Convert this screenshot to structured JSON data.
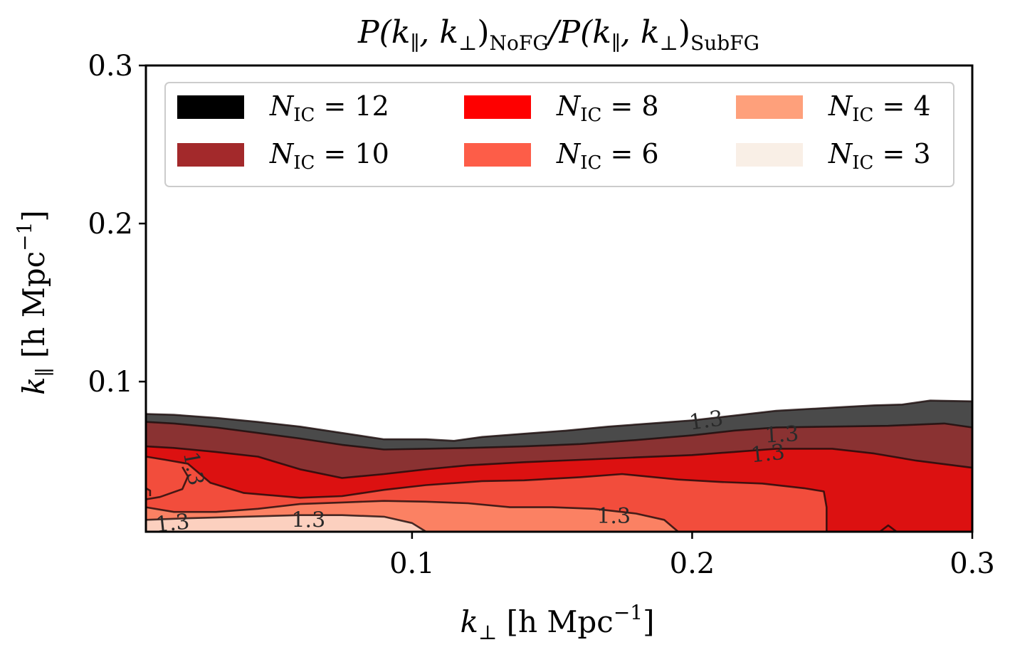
{
  "chart_data": {
    "type": "contour",
    "title": "P(k∥, k⊥)NoFG / P(k∥, k⊥)SubFG",
    "title_parts": {
      "a": "P(k",
      "a_sub": "∥",
      "b": ", k",
      "b_sub": "⊥",
      "c": ")",
      "c_sub": "NoFG",
      "d": "/P(k",
      "d_sub": "∥",
      "e": ", k",
      "e_sub": "⊥",
      "f": ")",
      "f_sub": "SubFG"
    },
    "xlabel": "k⊥ [h Mpc−1]",
    "xlabel_parts": {
      "sym": "k",
      "sub": "⊥",
      "unit": " [h Mpc",
      "exp": "−1",
      "close": "]"
    },
    "ylabel": "k∥ [h Mpc−1]",
    "ylabel_parts": {
      "sym": "k",
      "sub": "∥",
      "unit": " [h Mpc",
      "exp": "−1",
      "close": "]"
    },
    "xlim": [
      0.005,
      0.3
    ],
    "ylim": [
      0.005,
      0.3
    ],
    "x_ticks": [
      0.1,
      0.2,
      0.3
    ],
    "x_tick_labels": [
      "0.1",
      "0.2",
      "0.3"
    ],
    "y_ticks": [
      0.1,
      0.2,
      0.3
    ],
    "y_tick_labels": [
      "0.1",
      "0.2",
      "0.3"
    ],
    "contour_level": "1.3",
    "legend_position": "top",
    "series": [
      {
        "name": "N_IC = 12",
        "legend_sym": "N",
        "legend_sub": "IC",
        "legend_val": " = 12",
        "legend_color": "#000000",
        "fill_color": "#4a4a4a",
        "upper": [
          [
            0.005,
            0.0795
          ],
          [
            0.015,
            0.079
          ],
          [
            0.03,
            0.077
          ],
          [
            0.045,
            0.0745
          ],
          [
            0.06,
            0.0715
          ],
          [
            0.075,
            0.0675
          ],
          [
            0.09,
            0.0635
          ],
          [
            0.105,
            0.0635
          ],
          [
            0.115,
            0.0625
          ],
          [
            0.125,
            0.065
          ],
          [
            0.14,
            0.067
          ],
          [
            0.155,
            0.069
          ],
          [
            0.17,
            0.0715
          ],
          [
            0.185,
            0.0735
          ],
          [
            0.2,
            0.0755
          ],
          [
            0.215,
            0.0785
          ],
          [
            0.23,
            0.0815
          ],
          [
            0.245,
            0.083
          ],
          [
            0.255,
            0.084
          ],
          [
            0.265,
            0.085
          ],
          [
            0.275,
            0.0855
          ],
          [
            0.285,
            0.088
          ],
          [
            0.3,
            0.0875
          ]
        ]
      },
      {
        "name": "N_IC = 10",
        "legend_sym": "N",
        "legend_sub": "IC",
        "legend_val": " = 10",
        "legend_color": "#a3292b",
        "fill_color": "#8a3232",
        "upper": [
          [
            0.005,
            0.0745
          ],
          [
            0.015,
            0.0735
          ],
          [
            0.03,
            0.071
          ],
          [
            0.045,
            0.0675
          ],
          [
            0.06,
            0.064
          ],
          [
            0.075,
            0.06
          ],
          [
            0.09,
            0.057
          ],
          [
            0.105,
            0.0575
          ],
          [
            0.12,
            0.058
          ],
          [
            0.14,
            0.059
          ],
          [
            0.16,
            0.0605
          ],
          [
            0.18,
            0.063
          ],
          [
            0.2,
            0.066
          ],
          [
            0.215,
            0.069
          ],
          [
            0.23,
            0.071
          ],
          [
            0.25,
            0.0715
          ],
          [
            0.27,
            0.072
          ],
          [
            0.29,
            0.0735
          ],
          [
            0.3,
            0.071
          ]
        ]
      },
      {
        "name": "N_IC = 8",
        "legend_sym": "N",
        "legend_sub": "IC",
        "legend_val": " = 8",
        "legend_color": "#fe0000",
        "fill_color": "#dc1111",
        "upper": [
          [
            0.005,
            0.059
          ],
          [
            0.015,
            0.058
          ],
          [
            0.03,
            0.0555
          ],
          [
            0.045,
            0.0525
          ],
          [
            0.06,
            0.0445
          ],
          [
            0.075,
            0.039
          ],
          [
            0.09,
            0.0415
          ],
          [
            0.105,
            0.0445
          ],
          [
            0.12,
            0.047
          ],
          [
            0.14,
            0.049
          ],
          [
            0.16,
            0.0505
          ],
          [
            0.18,
            0.052
          ],
          [
            0.2,
            0.0535
          ],
          [
            0.215,
            0.0555
          ],
          [
            0.23,
            0.0575
          ],
          [
            0.25,
            0.0575
          ],
          [
            0.265,
            0.0545
          ],
          [
            0.28,
            0.05
          ],
          [
            0.3,
            0.0455
          ]
        ]
      },
      {
        "name": "N_IC = 6",
        "legend_sym": "N",
        "legend_sub": "IC",
        "legend_val": " = 6",
        "legend_color": "#fd5d48",
        "fill_color": "#f24d3c",
        "upper": [
          [
            0.005,
            0.0525
          ],
          [
            0.012,
            0.0505
          ],
          [
            0.02,
            0.048
          ],
          [
            0.028,
            0.036
          ],
          [
            0.04,
            0.0295
          ],
          [
            0.06,
            0.0265
          ],
          [
            0.075,
            0.0275
          ],
          [
            0.09,
            0.0315
          ],
          [
            0.105,
            0.0345
          ],
          [
            0.125,
            0.037
          ],
          [
            0.14,
            0.0375
          ],
          [
            0.16,
            0.0395
          ],
          [
            0.175,
            0.0415
          ],
          [
            0.195,
            0.038
          ],
          [
            0.21,
            0.0365
          ],
          [
            0.225,
            0.0355
          ],
          [
            0.24,
            0.0325
          ],
          [
            0.247,
            0.0305
          ],
          [
            0.248,
            0.0205
          ],
          [
            0.248,
            0.005
          ]
        ]
      },
      {
        "name": "N_IC = 4",
        "legend_sym": "N",
        "legend_sub": "IC",
        "legend_val": " = 4",
        "legend_color": "#fea07b",
        "fill_color": "#fb8163",
        "upper": [
          [
            0.005,
            0.0205
          ],
          [
            0.015,
            0.0175
          ],
          [
            0.03,
            0.0175
          ],
          [
            0.045,
            0.0195
          ],
          [
            0.06,
            0.0225
          ],
          [
            0.075,
            0.0235
          ],
          [
            0.09,
            0.0245
          ],
          [
            0.105,
            0.024
          ],
          [
            0.12,
            0.023
          ],
          [
            0.135,
            0.0205
          ],
          [
            0.15,
            0.0205
          ],
          [
            0.165,
            0.0195
          ],
          [
            0.18,
            0.0165
          ],
          [
            0.19,
            0.0125
          ],
          [
            0.195,
            0.005
          ]
        ]
      },
      {
        "name": "N_IC = 3",
        "legend_sym": "N",
        "legend_sub": "IC",
        "legend_val": " = 3",
        "legend_color": "#f9efe6",
        "fill_color": "#fcd0bf",
        "upper": [
          [
            0.005,
            0.0125
          ],
          [
            0.02,
            0.0135
          ],
          [
            0.04,
            0.0145
          ],
          [
            0.06,
            0.0155
          ],
          [
            0.075,
            0.0155
          ],
          [
            0.09,
            0.0145
          ],
          [
            0.1,
            0.0105
          ],
          [
            0.105,
            0.005
          ]
        ]
      }
    ],
    "extra_lines": [
      [
        [
          0.005,
          0.0255
        ],
        [
          0.01,
          0.027
        ],
        [
          0.018,
          0.032
        ],
        [
          0.02,
          0.04
        ],
        [
          0.018,
          0.046
        ]
      ],
      [
        [
          0.267,
          0.005
        ],
        [
          0.27,
          0.009
        ],
        [
          0.273,
          0.005
        ]
      ],
      [
        [
          0.005,
          0.0325
        ],
        [
          0.0065,
          0.031
        ],
        [
          0.0065,
          0.0275
        ]
      ]
    ],
    "contour_labels": [
      {
        "text": "1.3",
        "x": 0.205,
        "y": 0.0755,
        "rotate": -8
      },
      {
        "text": "1.3",
        "x": 0.232,
        "y": 0.0665,
        "rotate": -3
      },
      {
        "text": "1.3",
        "x": 0.227,
        "y": 0.0545,
        "rotate": -6
      },
      {
        "text": "1.3",
        "x": 0.022,
        "y": 0.045,
        "rotate": 80
      },
      {
        "text": "1.3",
        "x": 0.0145,
        "y": 0.0105,
        "rotate": -6
      },
      {
        "text": "1.3",
        "x": 0.063,
        "y": 0.0125,
        "rotate": 0
      },
      {
        "text": "1.3",
        "x": 0.172,
        "y": 0.015,
        "rotate": 0
      }
    ]
  }
}
